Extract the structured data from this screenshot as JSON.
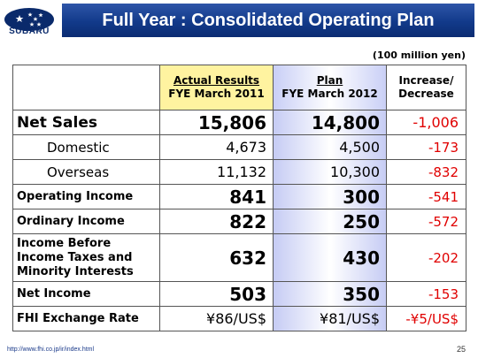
{
  "logo": {
    "brand": "SUBARU",
    "icon": "subaru-star-logo"
  },
  "title": "Full Year : Consolidated Operating Plan",
  "units": "(100 million yen)",
  "table": {
    "headers": {
      "actual": {
        "line1": "Actual Results",
        "line2": "FYE March 2011"
      },
      "plan": {
        "line1": "Plan",
        "line2": "FYE March 2012"
      },
      "change": {
        "line1": "Increase/",
        "line2": "Decrease"
      }
    },
    "rows": [
      {
        "label": "Net Sales",
        "actual": "15,806",
        "plan": "14,800",
        "change": "-1,006"
      },
      {
        "label": "Domestic",
        "actual": "4,673",
        "plan": "4,500",
        "change": "-173"
      },
      {
        "label": "Overseas",
        "actual": "11,132",
        "plan": "10,300",
        "change": "-832"
      },
      {
        "label": "Operating Income",
        "actual": "841",
        "plan": "300",
        "change": "-541"
      },
      {
        "label": "Ordinary Income",
        "actual": "822",
        "plan": "250",
        "change": "-572"
      },
      {
        "label_lines": [
          "Income Before",
          "Income Taxes and",
          "Minority Interests"
        ],
        "actual": "632",
        "plan": "430",
        "change": "-202"
      },
      {
        "label": "Net Income",
        "actual": "503",
        "plan": "350",
        "change": "-153"
      },
      {
        "label": "FHI Exchange Rate",
        "actual": "¥86/US$",
        "plan": "¥81/US$",
        "change": "-¥5/US$"
      }
    ]
  },
  "footer": {
    "url": "http://www.fhi.co.jp/ir/index.html",
    "page": "25"
  },
  "colors": {
    "title_bar": "#123a8a",
    "actual_header": "#fff3a0",
    "plan_column": "#c6ccf4",
    "negative": "#e00000"
  }
}
